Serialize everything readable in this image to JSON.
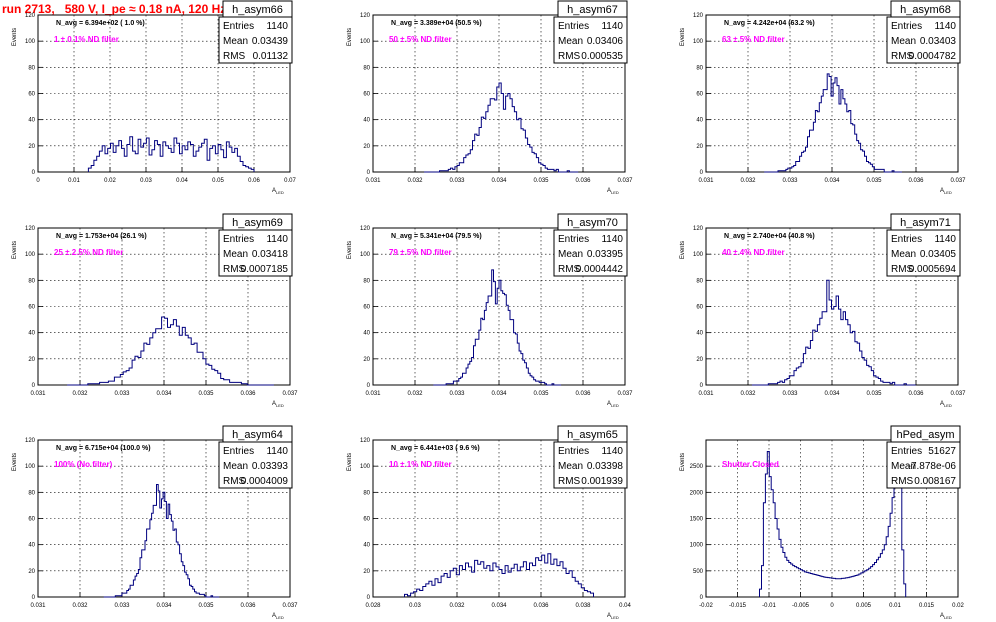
{
  "page_title": "run 2713,   580 V, I_pe ≈ 0.18 nA, 120 Hz",
  "colors": {
    "histogram_line": "#00007f",
    "filter_label": "#ff00ff",
    "title_text": "#ff0000",
    "grid": "#000000",
    "background": "#ffffff"
  },
  "chart_data": [
    {
      "type": "histogram",
      "name": "h_asym66",
      "nav_text": "N_avg = 6.394e+02 ( 1.0 %)",
      "filter_label": "1 ± 0.1% ND filter",
      "stats": {
        "entries": "1140",
        "mean": "0.03439",
        "rms": "0.01132"
      },
      "stat_labels": [
        "Entries",
        "Mean",
        "RMS"
      ],
      "ylabel": "Events",
      "xlabel": "A_LED",
      "xlim": [
        0,
        0.07
      ],
      "ylim": [
        0,
        120
      ],
      "xticks": [
        "0",
        "0.01",
        "0.02",
        "0.03",
        "0.04",
        "0.05",
        "0.06",
        "0.07"
      ],
      "yticks": [
        "0",
        "20",
        "40",
        "60",
        "80",
        "100",
        "120"
      ],
      "grid": true,
      "bins": [
        0.014,
        0.06
      ],
      "values": [
        3,
        5,
        9,
        12,
        16,
        20,
        14,
        18,
        22,
        15,
        20,
        24,
        18,
        12,
        21,
        27,
        16,
        14,
        25,
        19,
        22,
        26,
        13,
        17,
        24,
        21,
        12,
        23,
        20,
        18,
        15,
        26,
        22,
        14,
        20,
        17,
        23,
        21,
        12,
        16,
        19,
        22,
        25,
        9,
        18,
        20,
        14,
        21,
        17,
        11,
        23,
        19,
        15,
        18,
        12,
        8,
        5,
        4,
        3,
        2
      ]
    },
    {
      "type": "histogram",
      "name": "h_asym67",
      "nav_text": "N_avg = 3.389e+04 (50.5 %)",
      "filter_label": "50 ± 5% ND filter",
      "stats": {
        "entries": "1140",
        "mean": "0.03406",
        "rms": "0.000535"
      },
      "stat_labels": [
        "Entries",
        "Mean",
        "RMS"
      ],
      "ylabel": "Events",
      "xlabel": "A_LED",
      "xlim": [
        0.0305,
        0.0375
      ],
      "ylim": [
        0,
        120
      ],
      "xticks": [
        "0.031",
        "0.032",
        "0.033",
        "0.034",
        "0.035",
        "0.036",
        "0.037"
      ],
      "yticks": [
        "0",
        "20",
        "40",
        "60",
        "80",
        "100",
        "120"
      ],
      "grid": true,
      "mean": 0.03406,
      "sigma": 0.000535,
      "peak": 62,
      "spikes": [
        55,
        68,
        48,
        60
      ],
      "nbins": 70
    },
    {
      "type": "histogram",
      "name": "h_asym68",
      "nav_text": "N_avg = 4.242e+04 (63.2 %)",
      "filter_label": "63 ± 5% ND filter",
      "stats": {
        "entries": "1140",
        "mean": "0.03403",
        "rms": "0.0004782"
      },
      "stat_labels": [
        "Entries",
        "Mean",
        "RMS"
      ],
      "ylabel": "Events",
      "xlabel": "A_LED",
      "xlim": [
        0.0305,
        0.0375
      ],
      "ylim": [
        0,
        120
      ],
      "xticks": [
        "0.031",
        "0.032",
        "0.033",
        "0.034",
        "0.035",
        "0.036",
        "0.037"
      ],
      "yticks": [
        "0",
        "20",
        "40",
        "60",
        "80",
        "100",
        "120"
      ],
      "grid": true,
      "mean": 0.03403,
      "sigma": 0.000478,
      "peak": 70,
      "spikes": [
        75,
        58,
        72,
        52
      ],
      "nbins": 70
    },
    {
      "type": "histogram",
      "name": "h_asym69",
      "nav_text": "N_avg = 1.753e+04 (26.1 %)",
      "filter_label": "25 ± 2.5% ND filter",
      "stats": {
        "entries": "1140",
        "mean": "0.03418",
        "rms": "0.0007185"
      },
      "stat_labels": [
        "Entries",
        "Mean",
        "RMS"
      ],
      "ylabel": "Events",
      "xlabel": "A_LED",
      "xlim": [
        0.0305,
        0.0375
      ],
      "ylim": [
        0,
        120
      ],
      "xticks": [
        "0.031",
        "0.032",
        "0.033",
        "0.034",
        "0.035",
        "0.036",
        "0.037"
      ],
      "yticks": [
        "0",
        "20",
        "40",
        "60",
        "80",
        "100",
        "120"
      ],
      "grid": true,
      "mean": 0.03418,
      "sigma": 0.000718,
      "peak": 48,
      "spikes": [
        52,
        44,
        50,
        38
      ],
      "nbins": 70
    },
    {
      "type": "histogram",
      "name": "h_asym70",
      "nav_text": "N_avg = 5.341e+04 (79.5 %)",
      "filter_label": "79 ± 5% ND filter",
      "stats": {
        "entries": "1140",
        "mean": "0.03395",
        "rms": "0.0004442"
      },
      "stat_labels": [
        "Entries",
        "Mean",
        "RMS"
      ],
      "ylabel": "Events",
      "xlabel": "A_LED",
      "xlim": [
        0.0305,
        0.0375
      ],
      "ylim": [
        0,
        120
      ],
      "xticks": [
        "0.031",
        "0.032",
        "0.033",
        "0.034",
        "0.035",
        "0.036",
        "0.037"
      ],
      "yticks": [
        "0",
        "20",
        "40",
        "60",
        "80",
        "100",
        "120"
      ],
      "grid": true,
      "mean": 0.03395,
      "sigma": 0.000444,
      "peak": 76,
      "spikes": [
        88,
        62,
        80,
        70
      ],
      "nbins": 70
    },
    {
      "type": "histogram",
      "name": "h_asym71",
      "nav_text": "N_avg = 2.740e+04 (40.8 %)",
      "filter_label": "40 ± 4% ND filter",
      "stats": {
        "entries": "1140",
        "mean": "0.03405",
        "rms": "0.0005694"
      },
      "stat_labels": [
        "Entries",
        "Mean",
        "RMS"
      ],
      "ylabel": "Events",
      "xlabel": "A_LED",
      "xlim": [
        0.0305,
        0.0375
      ],
      "ylim": [
        0,
        120
      ],
      "xticks": [
        "0.031",
        "0.032",
        "0.033",
        "0.034",
        "0.035",
        "0.036",
        "0.037"
      ],
      "yticks": [
        "0",
        "20",
        "40",
        "60",
        "80",
        "100",
        "120"
      ],
      "grid": true,
      "mean": 0.03405,
      "sigma": 0.000569,
      "peak": 62,
      "spikes": [
        80,
        58,
        68,
        50
      ],
      "nbins": 70
    },
    {
      "type": "histogram",
      "name": "h_asym64",
      "nav_text": "N_avg = 6.715e+04 (100.0 %)",
      "filter_label": "100% (No filter)",
      "stats": {
        "entries": "1140",
        "mean": "0.03393",
        "rms": "0.0004009"
      },
      "stat_labels": [
        "Entries",
        "Mean",
        "RMS"
      ],
      "ylabel": "Events",
      "xlabel": "A_LED",
      "xlim": [
        0.0305,
        0.0375
      ],
      "ylim": [
        0,
        120
      ],
      "xticks": [
        "0.031",
        "0.032",
        "0.033",
        "0.034",
        "0.035",
        "0.036",
        "0.037"
      ],
      "yticks": [
        "0",
        "20",
        "40",
        "60",
        "80",
        "100",
        "120"
      ],
      "grid": true,
      "mean": 0.03393,
      "sigma": 0.000401,
      "peak": 78,
      "spikes": [
        86,
        68,
        80,
        60
      ],
      "nbins": 70
    },
    {
      "type": "histogram",
      "name": "h_asym65",
      "nav_text": "N_avg = 6.441e+03 ( 9.6 %)",
      "filter_label": "10 ± 1% ND filter",
      "stats": {
        "entries": "1140",
        "mean": "0.03398",
        "rms": "0.001939"
      },
      "stat_labels": [
        "Entries",
        "Mean",
        "RMS"
      ],
      "ylabel": "Events",
      "xlabel": "A_LED",
      "xlim": [
        0.028,
        0.04
      ],
      "ylim": [
        0,
        120
      ],
      "xticks": [
        "0.028",
        "0.03",
        "0.032",
        "0.034",
        "0.036",
        "0.038",
        "0.04"
      ],
      "yticks": [
        "0",
        "20",
        "40",
        "60",
        "80",
        "100",
        "120"
      ],
      "grid": true,
      "bins": [
        0.0295,
        0.0385
      ],
      "values": [
        2,
        1,
        3,
        4,
        6,
        5,
        8,
        10,
        12,
        9,
        14,
        11,
        16,
        18,
        15,
        20,
        22,
        17,
        24,
        21,
        26,
        23,
        19,
        28,
        25,
        27,
        22,
        24,
        20,
        26,
        23,
        21,
        18,
        24,
        19,
        22,
        25,
        20,
        23,
        27,
        21,
        26,
        24,
        30,
        28,
        32,
        26,
        33,
        25,
        29,
        24,
        27,
        22,
        18,
        20,
        15,
        12,
        10,
        7,
        5,
        4,
        3
      ]
    },
    {
      "type": "histogram",
      "name": "hPed_asym",
      "nav_text": "",
      "filter_label": "Shutter Closed",
      "stats": {
        "entries": "51627",
        "mean": "-7.878e-06",
        "rms": "0.008167"
      },
      "stat_labels": [
        "Entries",
        "Mean",
        "RMS"
      ],
      "ylabel": "Events",
      "xlabel": "A_LED",
      "xlim": [
        -0.02,
        0.02
      ],
      "ylim": [
        0,
        3000
      ],
      "xticks": [
        "-0.02",
        "-0.015",
        "-0.01",
        "-0.005",
        "0",
        "0.005",
        "0.01",
        "0.015",
        "0.02"
      ],
      "yticks": [
        "0",
        "500",
        "1000",
        "1500",
        "2000",
        "2500"
      ],
      "grid": true,
      "bins": [
        -0.0115,
        0.0117
      ],
      "values": [
        150,
        600,
        1800,
        2350,
        2780,
        2300,
        2050,
        1800,
        1500,
        1300,
        1100,
        950,
        850,
        760,
        700,
        660,
        630,
        600,
        580,
        560,
        540,
        520,
        500,
        480,
        470,
        460,
        450,
        440,
        430,
        420,
        410,
        400,
        390,
        380,
        375,
        370,
        365,
        360,
        355,
        350,
        350,
        350,
        355,
        360,
        365,
        370,
        380,
        390,
        400,
        410,
        420,
        440,
        460,
        480,
        500,
        520,
        550,
        580,
        620,
        660,
        710,
        760,
        830,
        900,
        1000,
        1150,
        1350,
        1600,
        1900,
        2250,
        2500,
        2700,
        2200,
        900,
        250
      ]
    }
  ]
}
